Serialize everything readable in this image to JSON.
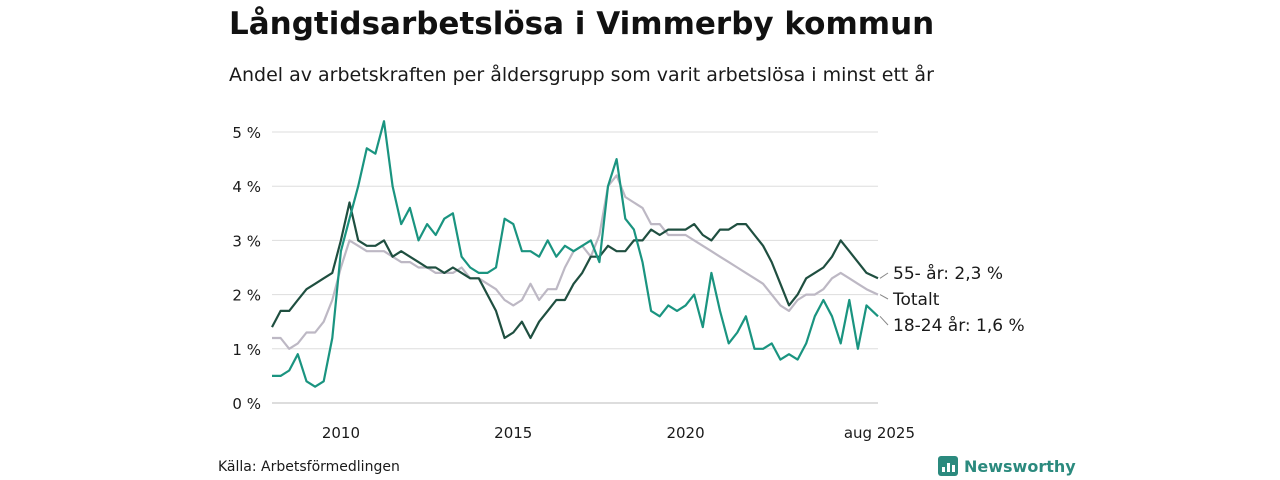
{
  "header": {
    "title": "Långtidsarbetslösa i Vimmerby kommun",
    "subtitle": "Andel av arbetskraften per åldersgrupp som varit arbetslösa i minst ett år"
  },
  "footer": {
    "source": "Källa: Arbetsförmedlingen",
    "brand": "Newsworthy"
  },
  "colors": {
    "series_55": "#1f4f40",
    "series_total": "#bdb8c4",
    "series_young": "#1a9480",
    "grid": "#dddddd",
    "brand": "#2b8a7e"
  },
  "chart_data": {
    "type": "line",
    "title": "Långtidsarbetslösa i Vimmerby kommun",
    "subtitle": "Andel av arbetskraften per åldersgrupp som varit arbetslösa i minst ett år",
    "xlabel": "",
    "ylabel": "",
    "ylim": [
      0,
      5
    ],
    "grid": true,
    "y_ticks": [
      {
        "value": 0,
        "label": "0 %"
      },
      {
        "value": 1,
        "label": "1 %"
      },
      {
        "value": 2,
        "label": "2 %"
      },
      {
        "value": 3,
        "label": "3 %"
      },
      {
        "value": 4,
        "label": "4 %"
      },
      {
        "value": 5,
        "label": "5 %"
      }
    ],
    "x_ticks": [
      {
        "value": "2010-01",
        "label": "2010"
      },
      {
        "value": "2015-01",
        "label": "2015"
      },
      {
        "value": "2020-01",
        "label": "2020"
      },
      {
        "value": "2025-08",
        "label": "aug 2025"
      }
    ],
    "xlim": [
      "2008-01",
      "2025-08"
    ],
    "series": [
      {
        "key": "total",
        "name": "Totalt",
        "label": "Totalt",
        "points": [
          [
            "2008-01",
            1.2
          ],
          [
            "2008-04",
            1.2
          ],
          [
            "2008-07",
            1.0
          ],
          [
            "2008-10",
            1.1
          ],
          [
            "2009-01",
            1.3
          ],
          [
            "2009-04",
            1.3
          ],
          [
            "2009-07",
            1.5
          ],
          [
            "2009-10",
            1.9
          ],
          [
            "2010-01",
            2.5
          ],
          [
            "2010-04",
            3.0
          ],
          [
            "2010-07",
            2.9
          ],
          [
            "2010-10",
            2.8
          ],
          [
            "2011-01",
            2.8
          ],
          [
            "2011-04",
            2.8
          ],
          [
            "2011-07",
            2.7
          ],
          [
            "2011-10",
            2.6
          ],
          [
            "2012-01",
            2.6
          ],
          [
            "2012-04",
            2.5
          ],
          [
            "2012-07",
            2.5
          ],
          [
            "2012-10",
            2.4
          ],
          [
            "2013-01",
            2.4
          ],
          [
            "2013-04",
            2.4
          ],
          [
            "2013-07",
            2.5
          ],
          [
            "2013-10",
            2.3
          ],
          [
            "2014-01",
            2.3
          ],
          [
            "2014-04",
            2.2
          ],
          [
            "2014-07",
            2.1
          ],
          [
            "2014-10",
            1.9
          ],
          [
            "2015-01",
            1.8
          ],
          [
            "2015-04",
            1.9
          ],
          [
            "2015-07",
            2.2
          ],
          [
            "2015-10",
            1.9
          ],
          [
            "2016-01",
            2.1
          ],
          [
            "2016-04",
            2.1
          ],
          [
            "2016-07",
            2.5
          ],
          [
            "2016-10",
            2.8
          ],
          [
            "2017-01",
            2.9
          ],
          [
            "2017-04",
            2.7
          ],
          [
            "2017-07",
            3.1
          ],
          [
            "2017-10",
            4.0
          ],
          [
            "2018-01",
            4.2
          ],
          [
            "2018-04",
            3.8
          ],
          [
            "2018-07",
            3.7
          ],
          [
            "2018-10",
            3.6
          ],
          [
            "2019-01",
            3.3
          ],
          [
            "2019-04",
            3.3
          ],
          [
            "2019-07",
            3.1
          ],
          [
            "2019-10",
            3.1
          ],
          [
            "2020-01",
            3.1
          ],
          [
            "2020-04",
            3.0
          ],
          [
            "2020-07",
            2.9
          ],
          [
            "2020-10",
            2.8
          ],
          [
            "2021-01",
            2.7
          ],
          [
            "2021-04",
            2.6
          ],
          [
            "2021-07",
            2.5
          ],
          [
            "2021-10",
            2.4
          ],
          [
            "2022-01",
            2.3
          ],
          [
            "2022-04",
            2.2
          ],
          [
            "2022-07",
            2.0
          ],
          [
            "2022-10",
            1.8
          ],
          [
            "2023-01",
            1.7
          ],
          [
            "2023-04",
            1.9
          ],
          [
            "2023-07",
            2.0
          ],
          [
            "2023-10",
            2.0
          ],
          [
            "2024-01",
            2.1
          ],
          [
            "2024-04",
            2.3
          ],
          [
            "2024-07",
            2.4
          ],
          [
            "2024-10",
            2.3
          ],
          [
            "2025-01",
            2.2
          ],
          [
            "2025-04",
            2.1
          ],
          [
            "2025-08",
            2.0
          ]
        ]
      },
      {
        "key": "age_55",
        "name": "55- år",
        "label": "55- år: 2,3 %",
        "points": [
          [
            "2008-01",
            1.4
          ],
          [
            "2008-04",
            1.7
          ],
          [
            "2008-07",
            1.7
          ],
          [
            "2008-10",
            1.9
          ],
          [
            "2009-01",
            2.1
          ],
          [
            "2009-04",
            2.2
          ],
          [
            "2009-07",
            2.3
          ],
          [
            "2009-10",
            2.4
          ],
          [
            "2010-01",
            3.0
          ],
          [
            "2010-04",
            3.7
          ],
          [
            "2010-07",
            3.0
          ],
          [
            "2010-10",
            2.9
          ],
          [
            "2011-01",
            2.9
          ],
          [
            "2011-04",
            3.0
          ],
          [
            "2011-07",
            2.7
          ],
          [
            "2011-10",
            2.8
          ],
          [
            "2012-01",
            2.7
          ],
          [
            "2012-04",
            2.6
          ],
          [
            "2012-07",
            2.5
          ],
          [
            "2012-10",
            2.5
          ],
          [
            "2013-01",
            2.4
          ],
          [
            "2013-04",
            2.5
          ],
          [
            "2013-07",
            2.4
          ],
          [
            "2013-10",
            2.3
          ],
          [
            "2014-01",
            2.3
          ],
          [
            "2014-04",
            2.0
          ],
          [
            "2014-07",
            1.7
          ],
          [
            "2014-10",
            1.2
          ],
          [
            "2015-01",
            1.3
          ],
          [
            "2015-04",
            1.5
          ],
          [
            "2015-07",
            1.2
          ],
          [
            "2015-10",
            1.5
          ],
          [
            "2016-01",
            1.7
          ],
          [
            "2016-04",
            1.9
          ],
          [
            "2016-07",
            1.9
          ],
          [
            "2016-10",
            2.2
          ],
          [
            "2017-01",
            2.4
          ],
          [
            "2017-04",
            2.7
          ],
          [
            "2017-07",
            2.7
          ],
          [
            "2017-10",
            2.9
          ],
          [
            "2018-01",
            2.8
          ],
          [
            "2018-04",
            2.8
          ],
          [
            "2018-07",
            3.0
          ],
          [
            "2018-10",
            3.0
          ],
          [
            "2019-01",
            3.2
          ],
          [
            "2019-04",
            3.1
          ],
          [
            "2019-07",
            3.2
          ],
          [
            "2019-10",
            3.2
          ],
          [
            "2020-01",
            3.2
          ],
          [
            "2020-04",
            3.3
          ],
          [
            "2020-07",
            3.1
          ],
          [
            "2020-10",
            3.0
          ],
          [
            "2021-01",
            3.2
          ],
          [
            "2021-04",
            3.2
          ],
          [
            "2021-07",
            3.3
          ],
          [
            "2021-10",
            3.3
          ],
          [
            "2022-01",
            3.1
          ],
          [
            "2022-04",
            2.9
          ],
          [
            "2022-07",
            2.6
          ],
          [
            "2022-10",
            2.2
          ],
          [
            "2023-01",
            1.8
          ],
          [
            "2023-04",
            2.0
          ],
          [
            "2023-07",
            2.3
          ],
          [
            "2023-10",
            2.4
          ],
          [
            "2024-01",
            2.5
          ],
          [
            "2024-04",
            2.7
          ],
          [
            "2024-07",
            3.0
          ],
          [
            "2024-10",
            2.8
          ],
          [
            "2025-01",
            2.6
          ],
          [
            "2025-04",
            2.4
          ],
          [
            "2025-08",
            2.3
          ]
        ]
      },
      {
        "key": "age_18_24",
        "name": "18-24 år",
        "label": "18-24 år: 1,6 %",
        "points": [
          [
            "2008-01",
            0.5
          ],
          [
            "2008-04",
            0.5
          ],
          [
            "2008-07",
            0.6
          ],
          [
            "2008-10",
            0.9
          ],
          [
            "2009-01",
            0.4
          ],
          [
            "2009-04",
            0.3
          ],
          [
            "2009-07",
            0.4
          ],
          [
            "2009-10",
            1.2
          ],
          [
            "2010-01",
            2.8
          ],
          [
            "2010-04",
            3.4
          ],
          [
            "2010-07",
            4.0
          ],
          [
            "2010-10",
            4.7
          ],
          [
            "2011-01",
            4.6
          ],
          [
            "2011-04",
            5.2
          ],
          [
            "2011-07",
            4.0
          ],
          [
            "2011-10",
            3.3
          ],
          [
            "2012-01",
            3.6
          ],
          [
            "2012-04",
            3.0
          ],
          [
            "2012-07",
            3.3
          ],
          [
            "2012-10",
            3.1
          ],
          [
            "2013-01",
            3.4
          ],
          [
            "2013-04",
            3.5
          ],
          [
            "2013-07",
            2.7
          ],
          [
            "2013-10",
            2.5
          ],
          [
            "2014-01",
            2.4
          ],
          [
            "2014-04",
            2.4
          ],
          [
            "2014-07",
            2.5
          ],
          [
            "2014-10",
            3.4
          ],
          [
            "2015-01",
            3.3
          ],
          [
            "2015-04",
            2.8
          ],
          [
            "2015-07",
            2.8
          ],
          [
            "2015-10",
            2.7
          ],
          [
            "2016-01",
            3.0
          ],
          [
            "2016-04",
            2.7
          ],
          [
            "2016-07",
            2.9
          ],
          [
            "2016-10",
            2.8
          ],
          [
            "2017-01",
            2.9
          ],
          [
            "2017-04",
            3.0
          ],
          [
            "2017-07",
            2.6
          ],
          [
            "2017-10",
            4.0
          ],
          [
            "2018-01",
            4.5
          ],
          [
            "2018-04",
            3.4
          ],
          [
            "2018-07",
            3.2
          ],
          [
            "2018-10",
            2.6
          ],
          [
            "2019-01",
            1.7
          ],
          [
            "2019-04",
            1.6
          ],
          [
            "2019-07",
            1.8
          ],
          [
            "2019-10",
            1.7
          ],
          [
            "2020-01",
            1.8
          ],
          [
            "2020-04",
            2.0
          ],
          [
            "2020-07",
            1.4
          ],
          [
            "2020-10",
            2.4
          ],
          [
            "2021-01",
            1.7
          ],
          [
            "2021-04",
            1.1
          ],
          [
            "2021-07",
            1.3
          ],
          [
            "2021-10",
            1.6
          ],
          [
            "2022-01",
            1.0
          ],
          [
            "2022-04",
            1.0
          ],
          [
            "2022-07",
            1.1
          ],
          [
            "2022-10",
            0.8
          ],
          [
            "2023-01",
            0.9
          ],
          [
            "2023-04",
            0.8
          ],
          [
            "2023-07",
            1.1
          ],
          [
            "2023-10",
            1.6
          ],
          [
            "2024-01",
            1.9
          ],
          [
            "2024-04",
            1.6
          ],
          [
            "2024-07",
            1.1
          ],
          [
            "2024-10",
            1.9
          ],
          [
            "2025-01",
            1.0
          ],
          [
            "2025-04",
            1.8
          ],
          [
            "2025-08",
            1.6
          ]
        ]
      }
    ]
  }
}
